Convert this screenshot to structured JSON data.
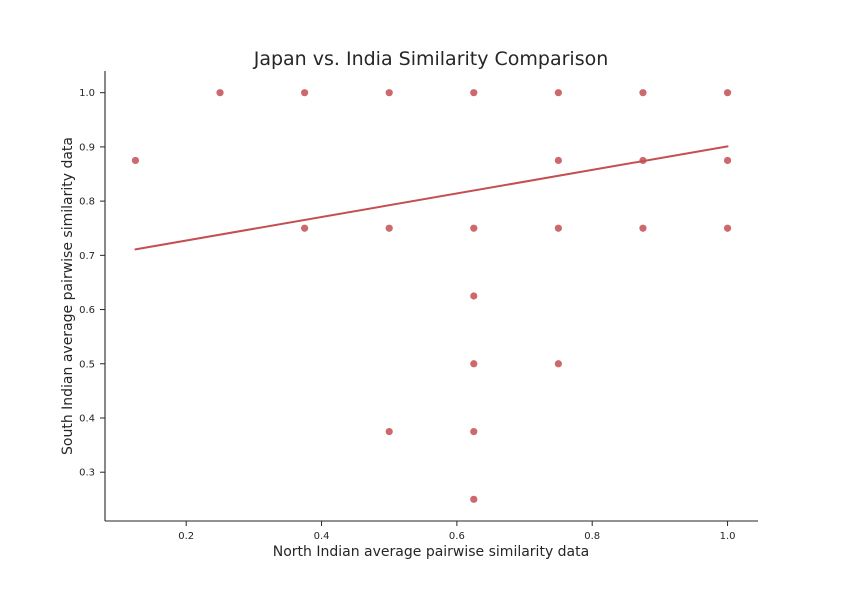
{
  "chart_data": {
    "type": "scatter",
    "title": "Japan vs. India Similarity Comparison",
    "xlabel": "North Indian average pairwise similarity data",
    "ylabel": "South Indian average pairwise similarity data",
    "xlim": [
      0.08,
      1.045
    ],
    "ylim": [
      0.21,
      1.04
    ],
    "x_ticks": [
      "0.2",
      "0.4",
      "0.6",
      "0.8",
      "1.0"
    ],
    "y_ticks": [
      "0.3",
      "0.4",
      "0.5",
      "0.6",
      "0.7",
      "0.8",
      "0.9",
      "1.0"
    ],
    "grid": false,
    "color": "#c44e52",
    "points": [
      {
        "x": 0.125,
        "y": 0.875
      },
      {
        "x": 0.25,
        "y": 1.0
      },
      {
        "x": 0.375,
        "y": 1.0
      },
      {
        "x": 0.375,
        "y": 0.75
      },
      {
        "x": 0.5,
        "y": 1.0
      },
      {
        "x": 0.5,
        "y": 0.75
      },
      {
        "x": 0.5,
        "y": 0.375
      },
      {
        "x": 0.625,
        "y": 1.0
      },
      {
        "x": 0.625,
        "y": 0.75
      },
      {
        "x": 0.625,
        "y": 0.625
      },
      {
        "x": 0.625,
        "y": 0.5
      },
      {
        "x": 0.625,
        "y": 0.375
      },
      {
        "x": 0.625,
        "y": 0.25
      },
      {
        "x": 0.75,
        "y": 1.0
      },
      {
        "x": 0.75,
        "y": 0.875
      },
      {
        "x": 0.75,
        "y": 0.75
      },
      {
        "x": 0.75,
        "y": 0.5
      },
      {
        "x": 0.875,
        "y": 1.0
      },
      {
        "x": 0.875,
        "y": 0.875
      },
      {
        "x": 0.875,
        "y": 0.75
      },
      {
        "x": 1.0,
        "y": 1.0
      },
      {
        "x": 1.0,
        "y": 0.875
      },
      {
        "x": 1.0,
        "y": 0.75
      }
    ],
    "regression_line": {
      "x": [
        0.125,
        1.0
      ],
      "y": [
        0.711,
        0.901
      ]
    }
  }
}
